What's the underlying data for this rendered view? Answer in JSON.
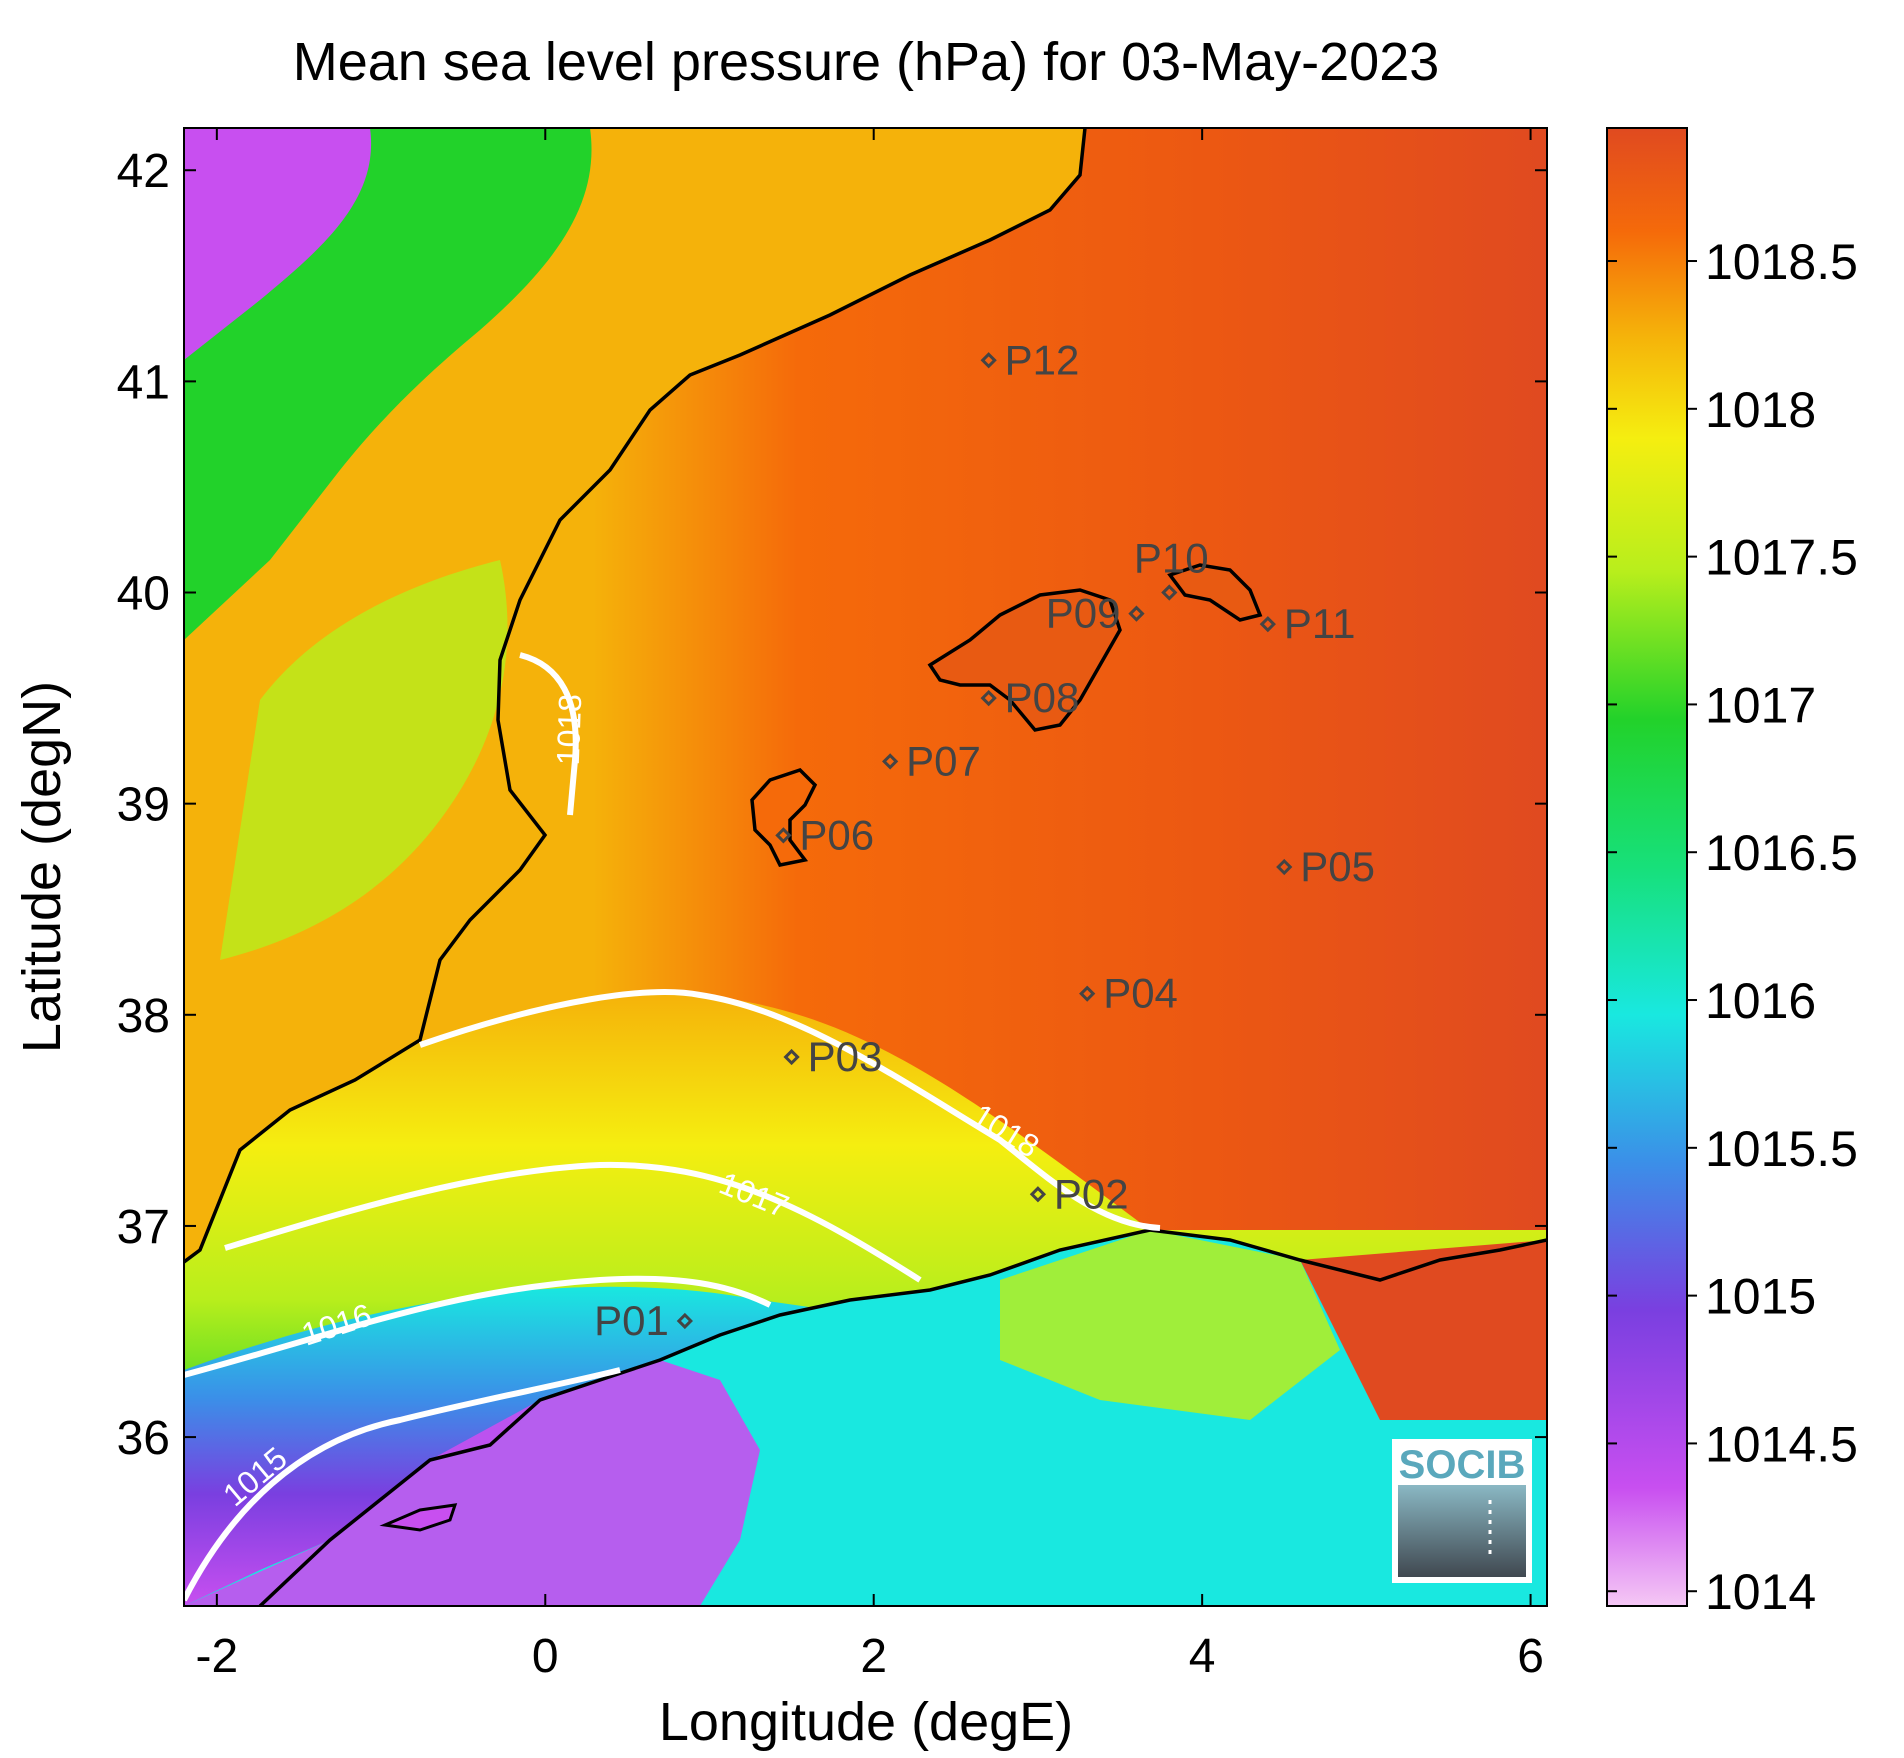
{
  "title": "Mean sea level pressure (hPa) for 03-May-2023",
  "xlabel": "Longitude (degE)",
  "ylabel": "Latitude (degN)",
  "map": {
    "lon_range": [
      -2.2,
      6.1
    ],
    "lat_range": [
      35.2,
      42.2
    ],
    "x_ticks": [
      {
        "value": -2,
        "label": "-2"
      },
      {
        "value": 0,
        "label": "0"
      },
      {
        "value": 2,
        "label": "2"
      },
      {
        "value": 4,
        "label": "4"
      },
      {
        "value": 6,
        "label": "6"
      }
    ],
    "y_ticks": [
      {
        "value": 36,
        "label": "36"
      },
      {
        "value": 37,
        "label": "37"
      },
      {
        "value": 38,
        "label": "38"
      },
      {
        "value": 39,
        "label": "39"
      },
      {
        "value": 40,
        "label": "40"
      },
      {
        "value": 41,
        "label": "41"
      },
      {
        "value": 42,
        "label": "42"
      }
    ]
  },
  "colorbar": {
    "range": [
      1013.95,
      1018.95
    ],
    "ticks": [
      {
        "value": 1014,
        "label": "1014"
      },
      {
        "value": 1014.5,
        "label": "1014.5"
      },
      {
        "value": 1015,
        "label": "1015"
      },
      {
        "value": 1015.5,
        "label": "1015.5"
      },
      {
        "value": 1016,
        "label": "1016"
      },
      {
        "value": 1016.5,
        "label": "1016.5"
      },
      {
        "value": 1017,
        "label": "1017"
      },
      {
        "value": 1017.5,
        "label": "1017.5"
      },
      {
        "value": 1018,
        "label": "1018"
      },
      {
        "value": 1018.5,
        "label": "1018.5"
      }
    ],
    "colors": [
      "#f5c8f5",
      "#c84ff0",
      "#7a3fe0",
      "#3b8fe8",
      "#19e8e0",
      "#17e07a",
      "#22d22a",
      "#b8ee1c",
      "#f5ee10",
      "#f5b20a",
      "#f56a0a",
      "#e04a20"
    ]
  },
  "stations": [
    {
      "id": "P01",
      "lon": 0.85,
      "lat": 36.55
    },
    {
      "id": "P02",
      "lon": 3.0,
      "lat": 37.15
    },
    {
      "id": "P03",
      "lon": 1.5,
      "lat": 37.8
    },
    {
      "id": "P04",
      "lon": 3.3,
      "lat": 38.1
    },
    {
      "id": "P05",
      "lon": 4.5,
      "lat": 38.7
    },
    {
      "id": "P06",
      "lon": 1.45,
      "lat": 38.85
    },
    {
      "id": "P07",
      "lon": 2.1,
      "lat": 39.2
    },
    {
      "id": "P08",
      "lon": 2.7,
      "lat": 39.5
    },
    {
      "id": "P09",
      "lon": 3.6,
      "lat": 39.9
    },
    {
      "id": "P10",
      "lon": 3.8,
      "lat": 40.0
    },
    {
      "id": "P11",
      "lon": 4.4,
      "lat": 39.85
    },
    {
      "id": "P12",
      "lon": 2.7,
      "lat": 41.1
    }
  ],
  "contours": [
    {
      "level": "1015",
      "label": "1015"
    },
    {
      "level": "1016",
      "label": "1016"
    },
    {
      "level": "1017",
      "label": "1017"
    },
    {
      "level": "1018",
      "label": "1018"
    }
  ],
  "logo": {
    "text": "SOCIB"
  }
}
